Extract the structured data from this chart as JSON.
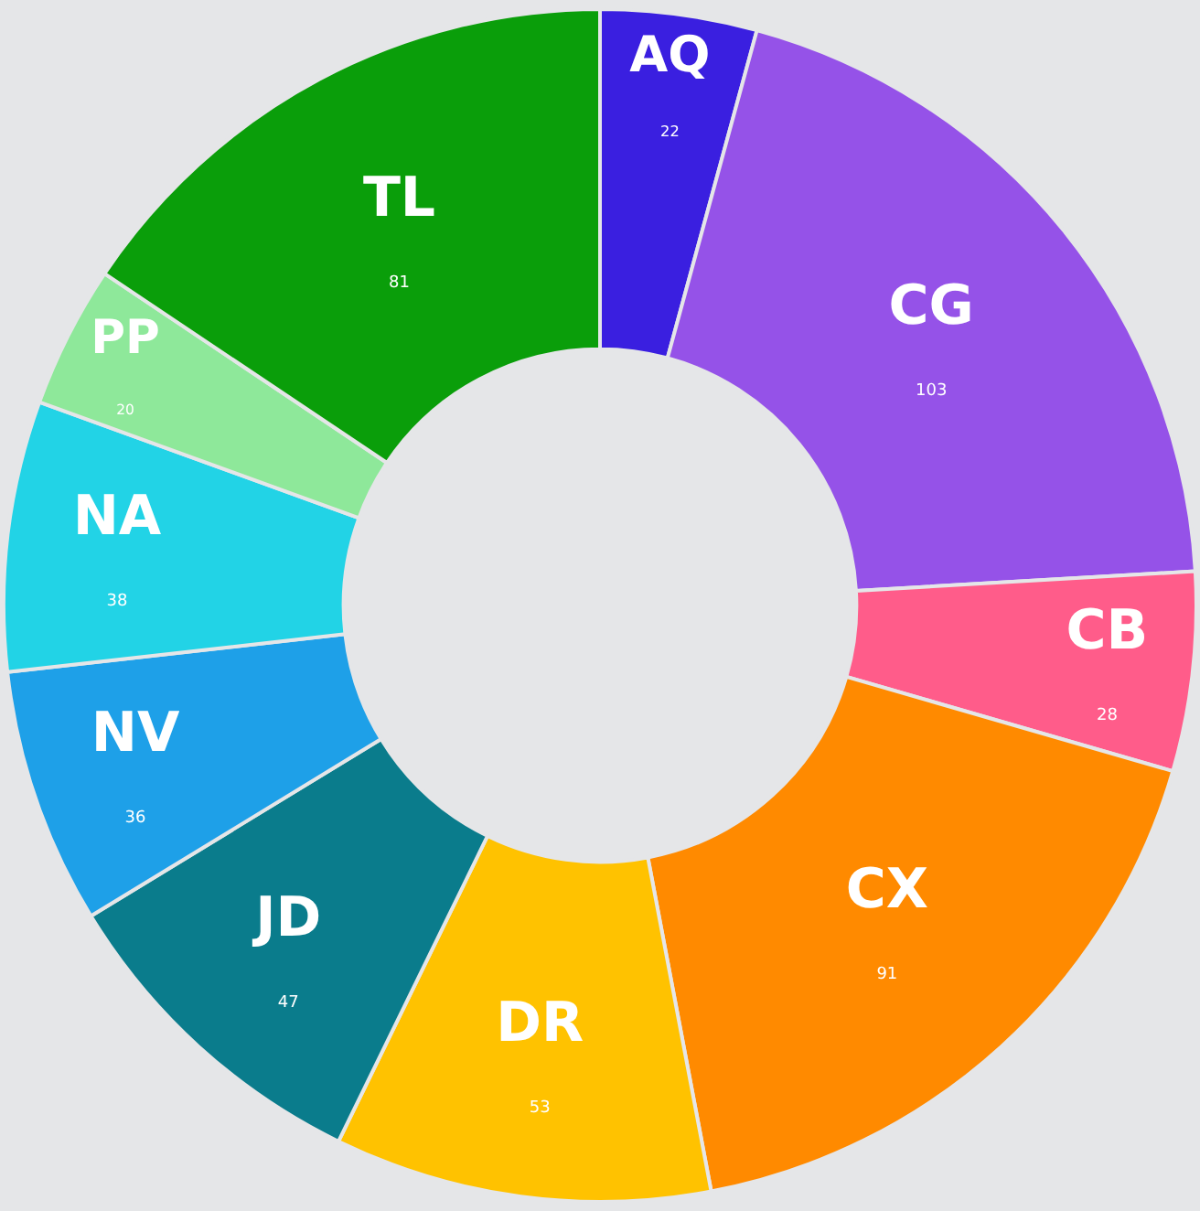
{
  "chart_data": {
    "type": "donut",
    "categories": [
      "AQ",
      "CG",
      "CB",
      "CX",
      "DR",
      "JD",
      "NV",
      "NA",
      "PP",
      "TL"
    ],
    "values": [
      22,
      103,
      28,
      91,
      53,
      47,
      36,
      38,
      20,
      81
    ],
    "colors": [
      "#3a1fe0",
      "#9552e8",
      "#ff5c8a",
      "#ff8a00",
      "#ffc200",
      "#0a7c8c",
      "#1ea0e8",
      "#22d3e6",
      "#8ee89a",
      "#0a9e0a"
    ],
    "data_labels": true,
    "legend": false
  }
}
